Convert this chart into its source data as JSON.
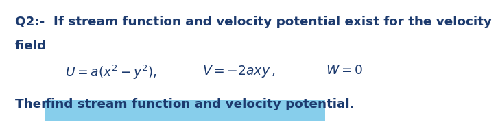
{
  "bg_color": "#ffffff",
  "text_color": "#1c3a6e",
  "highlight_color": "#87CEEB",
  "line1": "Q2:-  If stream function and velocity potential exist for the velocity",
  "line2": "field",
  "font_size_main": 13.2,
  "font_size_eq": 13.5
}
